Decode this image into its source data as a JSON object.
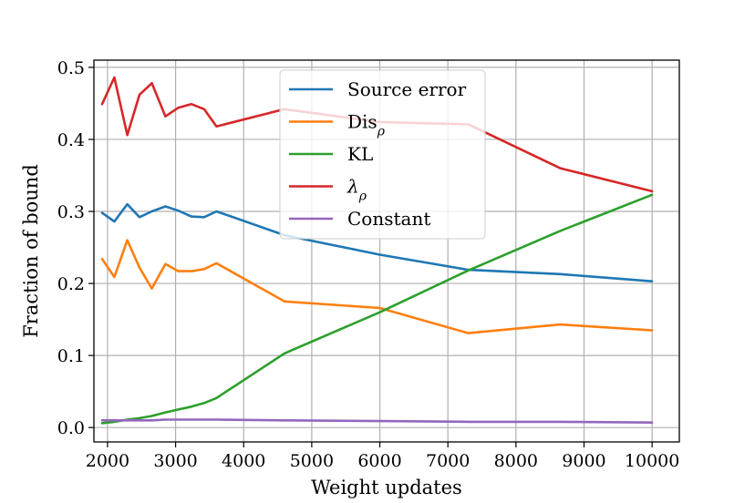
{
  "chart_data": {
    "type": "line",
    "title": "",
    "xlabel": "Weight updates",
    "ylabel": "Fraction of bound",
    "xlim": [
      1800,
      10400
    ],
    "ylim": [
      -0.02,
      0.51
    ],
    "xticks": [
      2000,
      3000,
      4000,
      5000,
      6000,
      7000,
      8000,
      9000,
      10000
    ],
    "yticks": [
      0.0,
      0.1,
      0.2,
      0.3,
      0.4,
      0.5
    ],
    "xtick_labels": [
      "2000",
      "3000",
      "4000",
      "5000",
      "6000",
      "7000",
      "8000",
      "9000",
      "10000"
    ],
    "ytick_labels": [
      "0.0",
      "0.1",
      "0.2",
      "0.3",
      "0.4",
      "0.5"
    ],
    "grid": true,
    "legend_position": "top-center",
    "series": [
      {
        "name": "Source error",
        "color": "#1f77b4",
        "x": [
          1920,
          2100,
          2290,
          2470,
          2650,
          2850,
          3040,
          3230,
          3420,
          3600,
          4600,
          6000,
          7300,
          8650,
          10000
        ],
        "y": [
          0.298,
          0.286,
          0.31,
          0.292,
          0.3,
          0.307,
          0.301,
          0.293,
          0.292,
          0.3,
          0.267,
          0.24,
          0.219,
          0.213,
          0.203
        ]
      },
      {
        "name": "Dis",
        "name_subscript": "ρ",
        "color": "#ff7f0e",
        "x": [
          1920,
          2100,
          2290,
          2470,
          2650,
          2850,
          3040,
          3230,
          3420,
          3600,
          4600,
          6000,
          7300,
          8650,
          10000
        ],
        "y": [
          0.234,
          0.209,
          0.26,
          0.222,
          0.193,
          0.227,
          0.217,
          0.217,
          0.22,
          0.228,
          0.175,
          0.166,
          0.131,
          0.143,
          0.135
        ]
      },
      {
        "name": "KL",
        "color": "#2ca02c",
        "x": [
          1920,
          2100,
          2290,
          2470,
          2650,
          2850,
          3040,
          3230,
          3420,
          3600,
          4600,
          6000,
          7300,
          8650,
          10000
        ],
        "y": [
          0.006,
          0.008,
          0.011,
          0.013,
          0.016,
          0.021,
          0.025,
          0.029,
          0.034,
          0.041,
          0.103,
          0.16,
          0.218,
          0.273,
          0.323
        ]
      },
      {
        "name": "λ",
        "name_subscript": "ρ",
        "color": "#d62728",
        "x": [
          1920,
          2100,
          2290,
          2470,
          2650,
          2850,
          3040,
          3230,
          3420,
          3600,
          4600,
          6000,
          7300,
          8650,
          10000
        ],
        "y": [
          0.449,
          0.486,
          0.406,
          0.462,
          0.478,
          0.432,
          0.444,
          0.449,
          0.442,
          0.418,
          0.442,
          0.424,
          0.421,
          0.36,
          0.328
        ]
      },
      {
        "name": "Constant",
        "color": "#9467bd",
        "x": [
          1920,
          2100,
          2290,
          2470,
          2650,
          2850,
          3040,
          3230,
          3420,
          3600,
          4600,
          6000,
          7300,
          8650,
          10000
        ],
        "y": [
          0.01,
          0.01,
          0.01,
          0.01,
          0.01,
          0.011,
          0.011,
          0.011,
          0.011,
          0.011,
          0.01,
          0.009,
          0.008,
          0.008,
          0.007
        ]
      }
    ]
  }
}
